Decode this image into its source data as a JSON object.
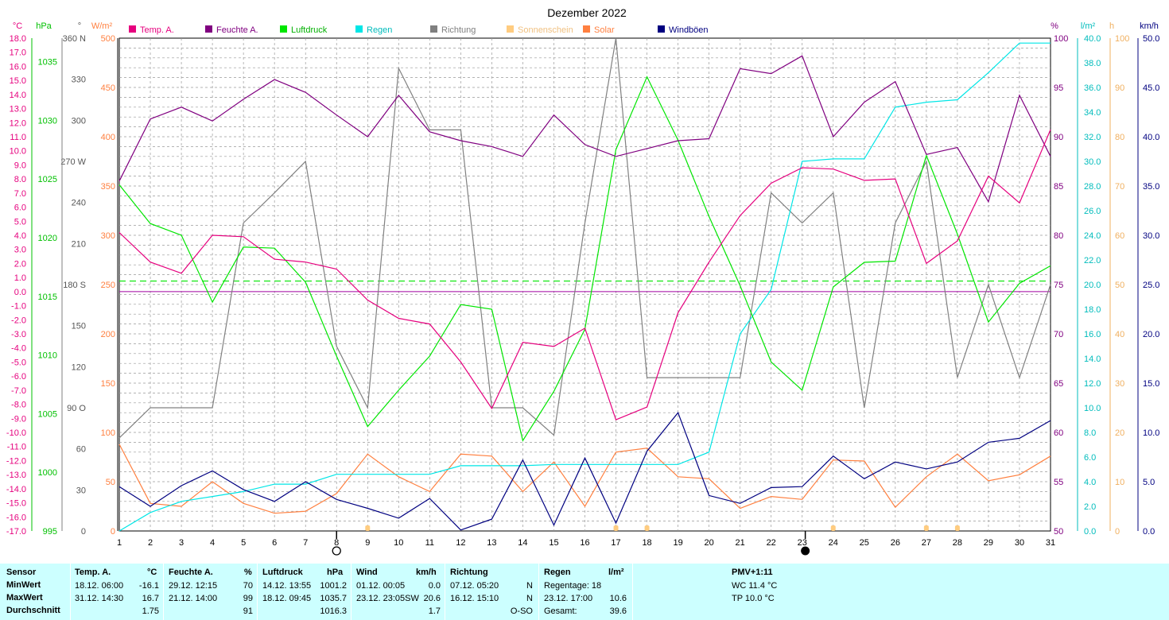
{
  "title": "Dezember 2022",
  "colors": {
    "temp": "#e6007e",
    "humidity": "#800080",
    "pressure": "#00e600",
    "rain": "#00e6e6",
    "direction": "#808080",
    "sunshine": "#ffcc80",
    "solar": "#ff8040",
    "gust": "#000080"
  },
  "legend": [
    {
      "label": "Temp. A.",
      "color": "#e6007e"
    },
    {
      "label": "Feuchte A.",
      "color": "#800080"
    },
    {
      "label": "Luftdruck",
      "color": "#00e600"
    },
    {
      "label": "Regen",
      "color": "#00e6e6"
    },
    {
      "label": "Richtung",
      "color": "#808080"
    },
    {
      "label": "Sonnenschein",
      "color": "#ffcc80"
    },
    {
      "label": "Solar",
      "color": "#ff8040"
    },
    {
      "label": "Windböen",
      "color": "#000080"
    }
  ],
  "units": {
    "temp": "°C",
    "pressure": "hPa",
    "direction": "°",
    "solar": "W/m²",
    "humidity": "%",
    "rain": "l/m²",
    "sunshine": "h",
    "gust": "km/h"
  },
  "axes": {
    "temp": [
      "18.0",
      "17.0",
      "16.0",
      "15.0",
      "14.0",
      "13.0",
      "12.0",
      "11.0",
      "10.0",
      "9.0",
      "8.0",
      "7.0",
      "6.0",
      "5.0",
      "4.0",
      "3.0",
      "2.0",
      "1.0",
      "0.0",
      "-1.0",
      "-2.0",
      "-3.0",
      "-4.0",
      "-5.0",
      "-6.0",
      "-7.0",
      "-8.0",
      "-9.0",
      "-10.0",
      "-11.0",
      "-12.0",
      "-13.0",
      "-14.0",
      "-15.0",
      "-16.0",
      "-17.0"
    ],
    "pressure": [
      "1035",
      "1030",
      "1025",
      "1020",
      "1015",
      "1010",
      "1005",
      "1000",
      "995"
    ],
    "direction": [
      "360 N",
      "330",
      "300",
      "270 W",
      "240",
      "210",
      "180 S",
      "150",
      "120",
      "90  O",
      "60",
      "30",
      "0"
    ],
    "solar": [
      "500",
      "450",
      "400",
      "350",
      "300",
      "250",
      "200",
      "150",
      "100",
      "50",
      "0"
    ],
    "humidity": [
      "100",
      "95",
      "90",
      "85",
      "80",
      "75",
      "70",
      "65",
      "60",
      "55",
      "50"
    ],
    "rain": [
      "40.0",
      "38.0",
      "36.0",
      "34.0",
      "32.0",
      "30.0",
      "28.0",
      "26.0",
      "24.0",
      "22.0",
      "20.0",
      "18.0",
      "16.0",
      "14.0",
      "12.0",
      "10.0",
      "8.0",
      "6.0",
      "4.0",
      "2.0",
      "0.0"
    ],
    "sunshine": [
      "100",
      "90",
      "80",
      "70",
      "60",
      "50",
      "40",
      "30",
      "20",
      "10",
      "0"
    ],
    "gust": [
      "50.0",
      "45.0",
      "40.0",
      "35.0",
      "30.0",
      "25.0",
      "20.0",
      "15.0",
      "10.0",
      "5.0",
      "0.0"
    ],
    "days": [
      "1",
      "2",
      "3",
      "4",
      "5",
      "6",
      "7",
      "8",
      "9",
      "10",
      "11",
      "12",
      "13",
      "14",
      "15",
      "16",
      "17",
      "18",
      "19",
      "20",
      "21",
      "22",
      "23",
      "24",
      "25",
      "26",
      "27",
      "28",
      "29",
      "30",
      "31"
    ]
  },
  "chart_data": {
    "type": "line",
    "title": "Dezember 2022",
    "x": [
      1,
      2,
      3,
      4,
      5,
      6,
      7,
      8,
      9,
      10,
      11,
      12,
      13,
      14,
      15,
      16,
      17,
      18,
      19,
      20,
      21,
      22,
      23,
      24,
      25,
      26,
      27,
      28,
      29,
      30,
      31
    ],
    "moon_phases": [
      {
        "day": 8.0,
        "phase": "full"
      },
      {
        "day": 23.1,
        "phase": "new"
      }
    ],
    "pressure_mean": 1016.3,
    "sunshine_marker_days": [
      9,
      17,
      18,
      24,
      27,
      28
    ],
    "series": [
      {
        "name": "Temp. A.",
        "key": "temp",
        "ylim": [
          -17,
          18
        ],
        "values": [
          4.2,
          2.1,
          1.3,
          4.0,
          3.9,
          2.3,
          2.1,
          1.6,
          -0.6,
          -1.9,
          -2.3,
          -5.0,
          -8.3,
          -3.6,
          -3.9,
          -2.6,
          -9.1,
          -8.2,
          -1.5,
          2.1,
          5.4,
          7.7,
          8.8,
          8.7,
          7.9,
          8.0,
          2.0,
          3.6,
          8.2,
          6.3,
          11.5
        ]
      },
      {
        "name": "Feuchte A.",
        "key": "humidity",
        "ylim": [
          50,
          100
        ],
        "values": [
          85.5,
          91.8,
          93.0,
          91.6,
          93.8,
          95.8,
          94.5,
          92.2,
          90.0,
          94.2,
          90.5,
          89.6,
          89.0,
          88.0,
          92.2,
          89.2,
          88.0,
          88.8,
          89.6,
          89.8,
          96.9,
          96.4,
          98.2,
          90.0,
          93.5,
          95.6,
          88.2,
          88.9,
          83.4,
          94.2,
          88.0
        ]
      },
      {
        "name": "Luftdruck",
        "key": "pressure",
        "ylim": [
          995,
          1037
        ],
        "values": [
          1024.5,
          1021.2,
          1020.2,
          1014.5,
          1019.2,
          1019.1,
          1016.2,
          1009.9,
          1003.9,
          1007.0,
          1009.9,
          1014.3,
          1013.9,
          1002.7,
          1006.9,
          1012.2,
          1027.5,
          1033.7,
          1028.3,
          1021.8,
          1015.9,
          1009.4,
          1007.0,
          1015.8,
          1017.9,
          1018.0,
          1027.0,
          1020.3,
          1012.8,
          1016.1,
          1017.6
        ]
      },
      {
        "name": "Regen",
        "key": "rain",
        "ylim": [
          0,
          40
        ],
        "values": [
          0.0,
          1.5,
          2.4,
          2.8,
          3.2,
          3.8,
          3.8,
          4.6,
          4.6,
          4.6,
          4.6,
          5.3,
          5.3,
          5.3,
          5.4,
          5.4,
          5.4,
          5.4,
          5.4,
          6.4,
          16.0,
          19.6,
          30.0,
          30.2,
          30.2,
          34.4,
          34.8,
          35.0,
          37.2,
          39.6,
          39.6
        ]
      },
      {
        "name": "Richtung",
        "key": "direction",
        "ylim": [
          0,
          360
        ],
        "values": [
          68,
          90,
          90,
          90,
          225,
          247,
          270,
          135,
          90,
          338,
          293,
          293,
          90,
          90,
          70,
          225,
          360,
          112,
          112,
          112,
          112,
          247,
          225,
          247,
          90,
          225,
          270,
          112,
          180,
          112,
          180
        ]
      },
      {
        "name": "Sonnenschein",
        "key": "sunshine",
        "ylim": [
          0,
          100
        ],
        "values": [
          0,
          0,
          0,
          0,
          0,
          0,
          0,
          0,
          0,
          0,
          0,
          0,
          0,
          0,
          0,
          0,
          0,
          0,
          0,
          0,
          0,
          0,
          0,
          0,
          0,
          0,
          0,
          0,
          0,
          0,
          0
        ]
      },
      {
        "name": "Solar",
        "key": "solar",
        "ylim": [
          0,
          500
        ],
        "values": [
          88,
          28,
          25,
          50,
          28,
          18,
          20,
          38,
          78,
          55,
          40,
          78,
          76,
          40,
          70,
          25,
          80,
          84,
          55,
          53,
          23,
          35,
          32,
          72,
          71,
          24,
          55,
          78,
          51,
          57,
          76
        ]
      },
      {
        "name": "Windböen",
        "key": "gust",
        "ylim": [
          0,
          50
        ],
        "values": [
          4.5,
          2.5,
          4.6,
          6.1,
          4.2,
          3.0,
          5.0,
          3.2,
          2.3,
          1.3,
          3.3,
          0.1,
          1.2,
          7.2,
          0.6,
          7.4,
          0.8,
          8.1,
          12.0,
          3.6,
          2.8,
          4.4,
          4.5,
          7.6,
          5.3,
          7.0,
          6.3,
          7.0,
          9.0,
          9.4,
          11.2
        ]
      }
    ]
  },
  "stats": {
    "sensor": {
      "h": "Sensor",
      "r1": "MinWert",
      "r2": "MaxWert",
      "r3": "Durchschnitt"
    },
    "temp": {
      "h": "Temp. A.",
      "u": "°C",
      "min_t": "18.12.  06:00",
      "min_v": "-16.1",
      "max_t": "31.12.  14:30",
      "max_v": "16.7",
      "avg": "1.75"
    },
    "hum": {
      "h": "Feuchte A.",
      "u": "%",
      "min_t": "29.12.  12:15",
      "min_v": "70",
      "max_t": "21.12.  14:00",
      "max_v": "99",
      "avg": "91"
    },
    "press": {
      "h": "Luftdruck",
      "u": "hPa",
      "min_t": "14.12.  13:55",
      "min_v": "1001.2",
      "max_t": "18.12.  09:45",
      "max_v": "1035.7",
      "avg": "1016.3"
    },
    "wind": {
      "h": "Wind",
      "u": "km/h",
      "min_t": "01.12.  00:05",
      "min_v": "0.0",
      "max_t": "23.12.  23:05SW",
      "max_v": "20.6",
      "avg": "1.7"
    },
    "dir": {
      "h": "Richtung",
      "min_t": "07.12.  05:20",
      "min_v": "N",
      "max_t": "16.12.  15:10",
      "max_v": "N",
      "avg": "O-SO"
    },
    "rain": {
      "h": "Regen",
      "u": "l/m²",
      "r1": "Regentage: 18",
      "r2": "23.12.  17:00",
      "r2v": "10.6",
      "r3": "Gesamt:",
      "r3v": "39.6"
    },
    "pmv": {
      "h": "PMV+1:11",
      "l1": "WC 11.4 °C",
      "l2": "TP 10.0 °C"
    }
  }
}
